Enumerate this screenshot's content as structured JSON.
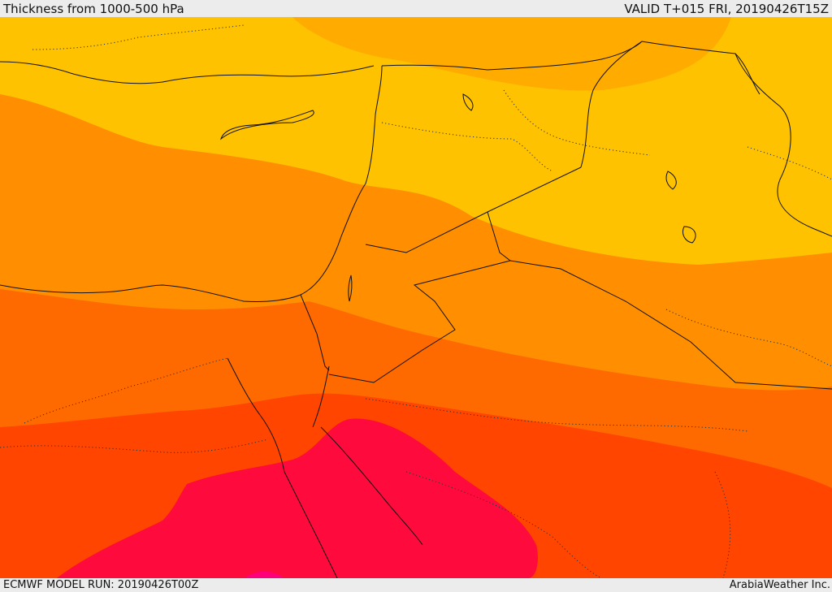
{
  "header": {
    "title": "Thickness from 1000-500 hPa",
    "valid_time": "VALID T+015 FRI, 20190426T15Z"
  },
  "footer": {
    "model_run": "ECMWF MODEL RUN: 20190426T00Z",
    "credit": "ArabiaWeather Inc."
  },
  "map": {
    "field_colors": [
      "#ffe600",
      "#ffc200",
      "#ffab00",
      "#ff8f00",
      "#ff6a00",
      "#ff4500",
      "#ff0a3c",
      "#ff007a"
    ]
  }
}
